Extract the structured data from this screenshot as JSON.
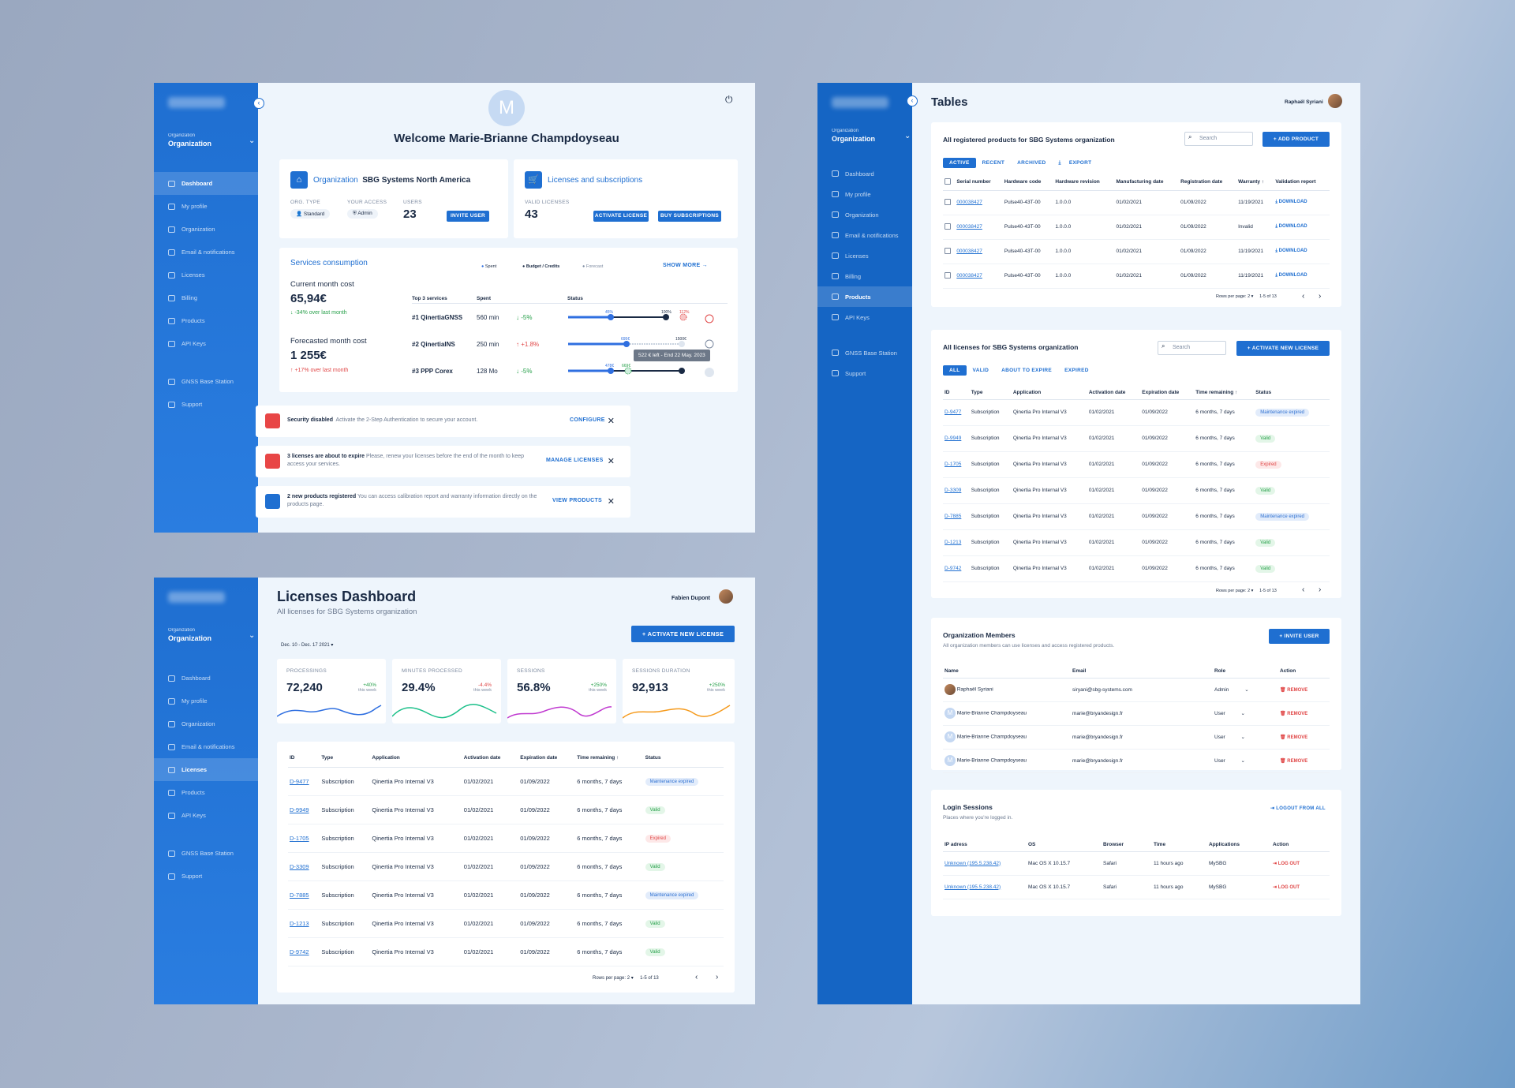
{
  "sidebar": {
    "org_label": "Organization",
    "org_name": "Organization",
    "items": [
      "Dashboard",
      "My profile",
      "Organization",
      "Email & notifications",
      "Licenses",
      "Billing",
      "Products",
      "API Keys"
    ],
    "extra": [
      "GNSS Base Station",
      "Support"
    ]
  },
  "welcome": {
    "avatar_letter": "M",
    "title": "Welcome Marie-Brianne Champdoyseau",
    "org": {
      "heading": "Organization",
      "name": "SBG Systems North America",
      "type_label": "ORG. TYPE",
      "type": "Standard",
      "access_label": "YOUR ACCESS",
      "access": "Admin",
      "users_label": "USERS",
      "users": "23",
      "invite": "INVITE USER"
    },
    "lic": {
      "heading": "Licenses and subscriptions",
      "valid_label": "VALID LICENSES",
      "valid": "43",
      "activate": "ACTIVATE LICENSE",
      "buy": "BUY SUBSCRIPTIONS"
    },
    "services": {
      "title": "Services consumption",
      "legend": [
        "Spent",
        "Budget / Credits",
        "Forecast"
      ],
      "show_more": "SHOW MORE",
      "current_label": "Current month cost",
      "current": "65,94€",
      "current_delta": "-34% over last month",
      "forecast_label": "Forecasted month cost",
      "forecast": "1 255€",
      "forecast_delta": "+17% over last month",
      "cols": [
        "Top 3 services",
        "Spent",
        "Status"
      ],
      "rows": [
        {
          "name": "#1 QinertiaGNSS",
          "spent": "560 min",
          "delta": "-5%",
          "a": "45%",
          "b": "100%",
          "c": "112%"
        },
        {
          "name": "#2 QinertiaINS",
          "spent": "250 min",
          "delta": "+1.8%",
          "a": "695€",
          "b": "1500€",
          "c": ""
        },
        {
          "name": "#3 PPP Corex",
          "spent": "128 Mo",
          "delta": "-5%",
          "a": "478€",
          "b": "669€",
          "c": ""
        }
      ],
      "tooltip": "522 € left - End 22 May. 2023"
    },
    "alerts": [
      {
        "bold": "Security disabled",
        "text": "Activate the 2-Step Authentication to secure your account.",
        "action": "CONFIGURE"
      },
      {
        "bold": "3 licenses are about to expire",
        "text": "Please, renew your licenses before the end of the month to keep access your services.",
        "action": "MANAGE LICENSES"
      },
      {
        "bold": "2 new products registered",
        "text": "You can access calibration report and warranty information directly on the products page.",
        "action": "VIEW PRODUCTS"
      }
    ]
  },
  "licdash": {
    "title": "Licenses Dashboard",
    "subtitle": "All licenses for SBG Systems organization",
    "user": "Fabien Dupont",
    "date_range": "Dec. 10 - Dec. 17 2021",
    "activate": "ACTIVATE NEW LICENSE",
    "kpis": [
      {
        "label": "PROCESSINGS",
        "value": "72,240",
        "delta": "+40%",
        "sub": "this week",
        "color": "#2f6fe0"
      },
      {
        "label": "MINUTES PROCESSED",
        "value": "29.4%",
        "delta": "-4.4%",
        "sub": "this week",
        "color": "#1cc08a"
      },
      {
        "label": "SESSIONS",
        "value": "56.8%",
        "delta": "+250%",
        "sub": "this week",
        "color": "#c03ad0"
      },
      {
        "label": "SESSIONS DURATION",
        "value": "92,913",
        "delta": "+250%",
        "sub": "this week",
        "color": "#f59a1c"
      }
    ],
    "pager": {
      "rows_label": "Rows per page:",
      "rows": "2",
      "range": "1-5 of 13"
    }
  },
  "licenses": {
    "cols": [
      "ID",
      "Type",
      "Application",
      "Activation date",
      "Expiration date",
      "Time remaining",
      "Status"
    ],
    "rows": [
      [
        "D-9477",
        "Subscription",
        "Qinertia Pro Internal V3",
        "01/02/2021",
        "01/09/2022",
        "6 months, 7 days",
        "Maintenance expired"
      ],
      [
        "D-9949",
        "Subscription",
        "Qinertia Pro Internal V3",
        "01/02/2021",
        "01/09/2022",
        "6 months, 7 days",
        "Valid"
      ],
      [
        "D-1705",
        "Subscription",
        "Qinertia Pro Internal V3",
        "01/02/2021",
        "01/09/2022",
        "6 months, 7 days",
        "Expired"
      ],
      [
        "D-3309",
        "Subscription",
        "Qinertia Pro Internal V3",
        "01/02/2021",
        "01/09/2022",
        "6 months, 7 days",
        "Valid"
      ],
      [
        "D-7885",
        "Subscription",
        "Qinertia Pro Internal V3",
        "01/02/2021",
        "01/09/2022",
        "6 months, 7 days",
        "Maintenance expired"
      ],
      [
        "D-1213",
        "Subscription",
        "Qinertia Pro Internal V3",
        "01/02/2021",
        "01/09/2022",
        "6 months, 7 days",
        "Valid"
      ],
      [
        "D-9742",
        "Subscription",
        "Qinertia Pro Internal V3",
        "01/02/2021",
        "01/09/2022",
        "6 months, 7 days",
        "Valid"
      ]
    ]
  },
  "tables": {
    "title": "Tables",
    "user": "Raphaël Syriani",
    "products": {
      "title": "All registered products for SBG Systems organization",
      "search": "Search",
      "add": "ADD PRODUCT",
      "tabs": [
        "ACTIVE",
        "RECENT",
        "ARCHIVED"
      ],
      "export": "EXPORT",
      "cols": [
        "Serial number",
        "Hardware code",
        "Hardware revision",
        "Manufacturing date",
        "Registration date",
        "Warranty",
        "Validation report"
      ],
      "rows": [
        [
          "000038427",
          "Pulse40-43T-00",
          "1.0.0.0",
          "01/02/2021",
          "01/09/2022",
          "11/19/2021",
          "DOWNLOAD"
        ],
        [
          "000038427",
          "Pulse40-43T-00",
          "1.0.0.0",
          "01/02/2021",
          "01/09/2022",
          "Invalid",
          "DOWNLOAD"
        ],
        [
          "000038427",
          "Pulse40-43T-00",
          "1.0.0.0",
          "01/02/2021",
          "01/09/2022",
          "11/19/2021",
          "DOWNLOAD"
        ],
        [
          "000038427",
          "Pulse40-43T-00",
          "1.0.0.0",
          "01/02/2021",
          "01/09/2022",
          "11/19/2021",
          "DOWNLOAD"
        ]
      ],
      "rows_label": "Rows per page:",
      "rows_n": "2",
      "range": "1-5 of 13"
    },
    "lics": {
      "title": "All licenses for SBG Systems organization",
      "search": "Search",
      "activate": "ACTIVATE NEW LICENSE",
      "tabs": [
        "ALL",
        "VALID",
        "ABOUT TO EXPIRE",
        "EXPIRED"
      ],
      "range": "1-5 of 13"
    },
    "members": {
      "title": "Organization Members",
      "subtitle": "All organization members can use licenses and access registered products.",
      "invite": "INVITE USER",
      "cols": [
        "Name",
        "Email",
        "Role",
        "Action"
      ],
      "rows": [
        [
          "Raphaël Syriani",
          "siryani@sbg-systems.com",
          "Admin",
          "REMOVE"
        ],
        [
          "Marie-Brianne Champdoyseau",
          "marie@bryandesign.fr",
          "User",
          "REMOVE"
        ],
        [
          "Marie-Brianne Champdoyseau",
          "marie@bryandesign.fr",
          "User",
          "REMOVE"
        ],
        [
          "Marie-Brianne Champdoyseau",
          "marie@bryandesign.fr",
          "User",
          "REMOVE"
        ]
      ]
    },
    "sessions": {
      "title": "Login Sessions",
      "subtitle": "Places where you're logged in.",
      "logout_all": "LOGOUT FROM ALL",
      "cols": [
        "IP adress",
        "OS",
        "Browser",
        "Time",
        "Applications",
        "Action"
      ],
      "rows": [
        [
          "Unknown (195.5.238.42)",
          "Mac OS X 10.15.7",
          "Safari",
          "11 hours ago",
          "MySBG",
          "LOG OUT"
        ],
        [
          "Unknown (195.5.238.42)",
          "Mac OS X 10.15.7",
          "Safari",
          "11 hours ago",
          "MySBG",
          "LOG OUT"
        ]
      ]
    }
  }
}
